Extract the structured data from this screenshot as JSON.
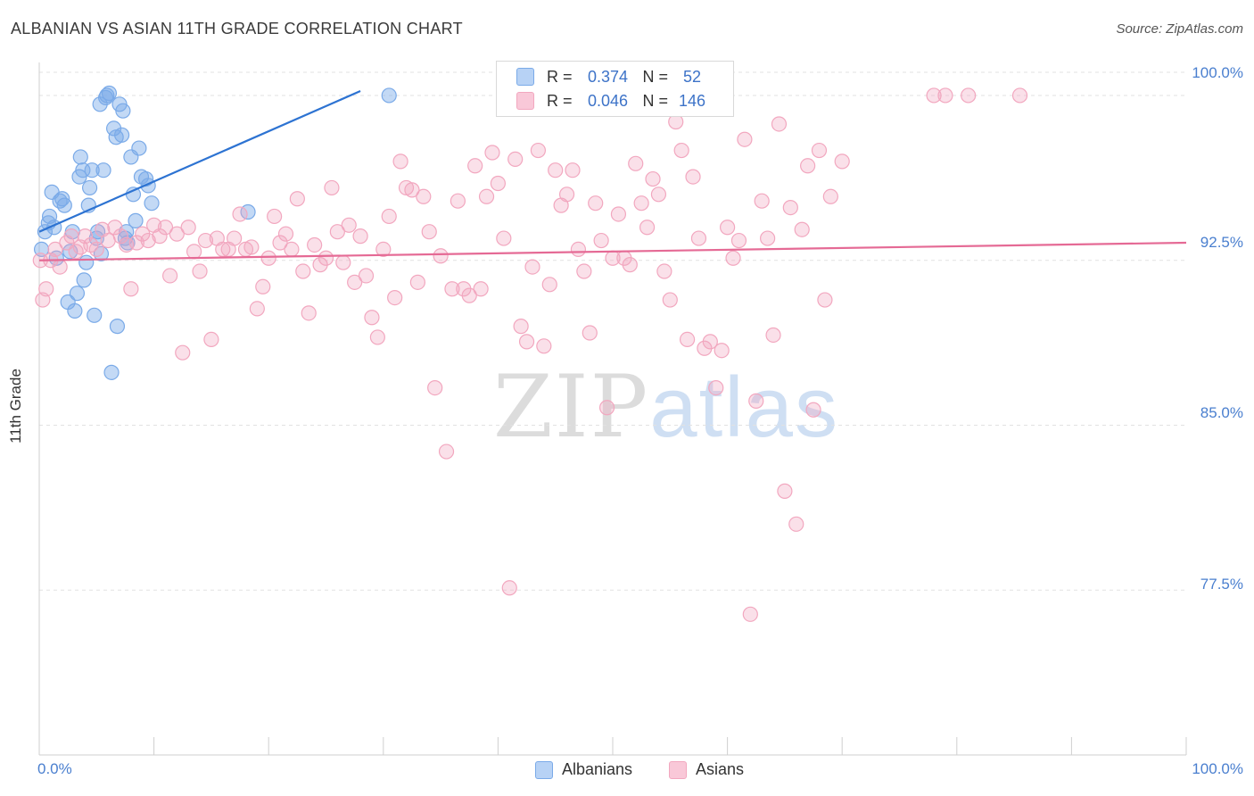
{
  "chart_data": {
    "type": "scatter",
    "title": "ALBANIAN VS ASIAN 11TH GRADE CORRELATION CHART",
    "source": "Source: ZipAtlas.com",
    "xlabel": "",
    "ylabel": "11th Grade",
    "xlim": [
      0,
      100
    ],
    "ylim": [
      70.0,
      101.5
    ],
    "y_ticks": [
      77.5,
      85.0,
      92.5,
      100.0
    ],
    "y_tick_labels": [
      "77.5%",
      "85.0%",
      "92.5%",
      "100.0%"
    ],
    "x_tick_labels": [
      "0.0%",
      "100.0%"
    ],
    "grid": true,
    "legend": {
      "position": "top-center",
      "entries": [
        {
          "r_label": "R =",
          "r_value": "0.374",
          "n_label": "N =",
          "n_value": "52"
        },
        {
          "r_label": "R =",
          "r_value": "0.046",
          "n_label": "N =",
          "n_value": "146"
        }
      ]
    },
    "series": [
      {
        "name": "Albanians",
        "color": "#7aaae8",
        "line_color": "#2d73d2",
        "trend": [
          [
            0,
            93.8
          ],
          [
            28,
            100.2
          ]
        ],
        "points": [
          [
            0.5,
            93.8
          ],
          [
            0.8,
            94.2
          ],
          [
            0.9,
            94.5
          ],
          [
            1.1,
            95.6
          ],
          [
            1.3,
            94.0
          ],
          [
            1.5,
            92.6
          ],
          [
            1.8,
            95.2
          ],
          [
            2.0,
            95.3
          ],
          [
            2.2,
            95.0
          ],
          [
            2.5,
            90.6
          ],
          [
            2.7,
            92.9
          ],
          [
            2.9,
            93.8
          ],
          [
            3.1,
            90.2
          ],
          [
            3.3,
            91.0
          ],
          [
            3.5,
            96.3
          ],
          [
            3.6,
            97.2
          ],
          [
            3.8,
            96.6
          ],
          [
            3.9,
            91.6
          ],
          [
            4.1,
            92.4
          ],
          [
            4.3,
            95.0
          ],
          [
            4.4,
            95.8
          ],
          [
            4.6,
            96.6
          ],
          [
            4.8,
            90.0
          ],
          [
            5.0,
            93.5
          ],
          [
            5.1,
            93.8
          ],
          [
            5.3,
            99.6
          ],
          [
            5.4,
            92.8
          ],
          [
            5.6,
            96.6
          ],
          [
            5.8,
            99.9
          ],
          [
            5.9,
            100.0
          ],
          [
            6.1,
            100.1
          ],
          [
            6.3,
            87.4
          ],
          [
            6.5,
            98.5
          ],
          [
            6.7,
            98.1
          ],
          [
            6.8,
            89.5
          ],
          [
            7.0,
            99.6
          ],
          [
            7.2,
            98.2
          ],
          [
            7.3,
            99.3
          ],
          [
            7.5,
            93.5
          ],
          [
            7.6,
            93.8
          ],
          [
            7.7,
            93.3
          ],
          [
            8.0,
            97.2
          ],
          [
            8.2,
            95.5
          ],
          [
            8.4,
            94.3
          ],
          [
            8.7,
            97.6
          ],
          [
            8.9,
            96.3
          ],
          [
            9.3,
            96.2
          ],
          [
            9.5,
            95.9
          ],
          [
            9.8,
            95.1
          ],
          [
            18.2,
            94.7
          ],
          [
            30.5,
            100.0
          ],
          [
            0.2,
            93.0
          ]
        ]
      },
      {
        "name": "Asians",
        "color": "#f2a7bf",
        "line_color": "#e56a95",
        "trend": [
          [
            0,
            92.5
          ],
          [
            100,
            93.3
          ]
        ],
        "points": [
          [
            0.3,
            90.7
          ],
          [
            0.6,
            91.2
          ],
          [
            1.0,
            92.5
          ],
          [
            1.4,
            93.0
          ],
          [
            1.8,
            92.2
          ],
          [
            2.4,
            93.3
          ],
          [
            2.8,
            93.6
          ],
          [
            3.2,
            92.9
          ],
          [
            3.6,
            93.1
          ],
          [
            4.0,
            93.6
          ],
          [
            4.5,
            93.2
          ],
          [
            5.0,
            93.0
          ],
          [
            5.5,
            93.9
          ],
          [
            6.0,
            93.4
          ],
          [
            6.6,
            94.0
          ],
          [
            7.1,
            93.6
          ],
          [
            7.6,
            93.2
          ],
          [
            8.0,
            91.2
          ],
          [
            8.5,
            93.3
          ],
          [
            9.0,
            93.7
          ],
          [
            9.5,
            93.4
          ],
          [
            10.0,
            94.1
          ],
          [
            10.5,
            93.6
          ],
          [
            11.0,
            94.0
          ],
          [
            11.4,
            91.8
          ],
          [
            12.0,
            93.7
          ],
          [
            12.5,
            88.3
          ],
          [
            13.0,
            94.0
          ],
          [
            13.5,
            92.9
          ],
          [
            14.0,
            92.0
          ],
          [
            14.5,
            93.4
          ],
          [
            15.0,
            88.9
          ],
          [
            15.5,
            93.5
          ],
          [
            16.0,
            93.0
          ],
          [
            16.5,
            93.0
          ],
          [
            17.0,
            93.5
          ],
          [
            17.5,
            94.6
          ],
          [
            18.0,
            93.0
          ],
          [
            18.5,
            93.1
          ],
          [
            19.0,
            90.3
          ],
          [
            19.5,
            91.3
          ],
          [
            20.0,
            92.6
          ],
          [
            20.5,
            94.5
          ],
          [
            21.0,
            93.3
          ],
          [
            21.5,
            93.7
          ],
          [
            22.0,
            93.0
          ],
          [
            22.5,
            95.3
          ],
          [
            23.0,
            92.0
          ],
          [
            23.5,
            90.1
          ],
          [
            24.0,
            93.2
          ],
          [
            24.5,
            92.3
          ],
          [
            25.0,
            92.6
          ],
          [
            25.5,
            95.8
          ],
          [
            26.0,
            93.8
          ],
          [
            26.5,
            92.4
          ],
          [
            27.0,
            94.1
          ],
          [
            27.5,
            91.5
          ],
          [
            28.0,
            93.6
          ],
          [
            28.5,
            91.8
          ],
          [
            29.0,
            89.9
          ],
          [
            29.5,
            89.0
          ],
          [
            30.0,
            93.0
          ],
          [
            30.5,
            94.5
          ],
          [
            31.0,
            90.8
          ],
          [
            31.5,
            97.0
          ],
          [
            32.0,
            95.8
          ],
          [
            32.5,
            95.7
          ],
          [
            33.0,
            91.5
          ],
          [
            33.5,
            95.4
          ],
          [
            34.0,
            93.8
          ],
          [
            34.5,
            86.7
          ],
          [
            35.0,
            92.7
          ],
          [
            35.5,
            83.8
          ],
          [
            36.0,
            91.2
          ],
          [
            36.5,
            95.2
          ],
          [
            37.0,
            91.2
          ],
          [
            37.5,
            90.9
          ],
          [
            38.0,
            96.8
          ],
          [
            38.5,
            91.2
          ],
          [
            39.0,
            95.4
          ],
          [
            39.5,
            97.4
          ],
          [
            40.0,
            96.0
          ],
          [
            40.5,
            93.5
          ],
          [
            41.0,
            77.6
          ],
          [
            41.5,
            97.1
          ],
          [
            42.0,
            89.5
          ],
          [
            42.5,
            88.8
          ],
          [
            43.0,
            92.2
          ],
          [
            43.5,
            97.5
          ],
          [
            44.0,
            88.6
          ],
          [
            44.5,
            91.4
          ],
          [
            45.0,
            96.6
          ],
          [
            45.5,
            95.0
          ],
          [
            46.0,
            95.5
          ],
          [
            46.5,
            96.6
          ],
          [
            47.0,
            93.0
          ],
          [
            47.5,
            92.0
          ],
          [
            48.0,
            89.2
          ],
          [
            48.5,
            95.1
          ],
          [
            49.0,
            93.4
          ],
          [
            49.5,
            85.8
          ],
          [
            50.0,
            92.6
          ],
          [
            50.5,
            94.6
          ],
          [
            51.0,
            92.6
          ],
          [
            51.5,
            92.3
          ],
          [
            52.0,
            96.9
          ],
          [
            52.5,
            95.1
          ],
          [
            53.0,
            94.0
          ],
          [
            53.5,
            96.2
          ],
          [
            54.0,
            95.5
          ],
          [
            54.5,
            92.0
          ],
          [
            55.0,
            90.7
          ],
          [
            55.5,
            98.8
          ],
          [
            56.0,
            97.5
          ],
          [
            56.5,
            88.9
          ],
          [
            57.0,
            96.3
          ],
          [
            57.5,
            93.5
          ],
          [
            58.0,
            88.5
          ],
          [
            58.5,
            88.8
          ],
          [
            59.0,
            86.7
          ],
          [
            59.5,
            88.4
          ],
          [
            60.0,
            94.0
          ],
          [
            60.5,
            92.6
          ],
          [
            61.0,
            93.4
          ],
          [
            61.5,
            98.0
          ],
          [
            62.0,
            76.4
          ],
          [
            62.5,
            86.1
          ],
          [
            63.0,
            95.2
          ],
          [
            63.5,
            93.5
          ],
          [
            64.0,
            89.1
          ],
          [
            64.5,
            98.7
          ],
          [
            65.0,
            82.0
          ],
          [
            65.5,
            94.9
          ],
          [
            66.0,
            80.5
          ],
          [
            66.5,
            93.9
          ],
          [
            67.0,
            96.8
          ],
          [
            67.5,
            85.7
          ],
          [
            68.0,
            97.5
          ],
          [
            68.5,
            90.7
          ],
          [
            69.0,
            95.4
          ],
          [
            70.0,
            97.0
          ],
          [
            78.0,
            100.0
          ],
          [
            79.0,
            100.0
          ],
          [
            81.0,
            100.0
          ],
          [
            85.5,
            100.0
          ],
          [
            0.1,
            92.5
          ]
        ]
      }
    ]
  },
  "watermark": {
    "zip": "ZIP",
    "atlas": "atlas"
  }
}
